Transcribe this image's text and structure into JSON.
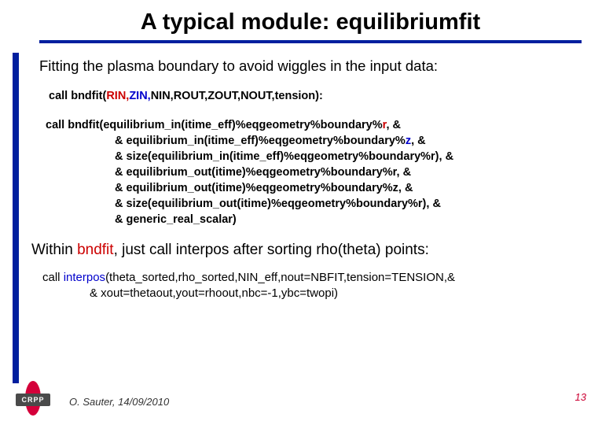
{
  "title": "A typical module: equilibriumfit",
  "intro": "Fitting the plasma boundary to avoid wiggles in the input data:",
  "call1": {
    "prefix": "call ",
    "fn_open": "bndfit(",
    "rin": "RIN,",
    "zin": "ZIN,",
    "rest": "NIN,ROUT,ZOUT,NOUT,tension):"
  },
  "call2": {
    "line0a": "call ",
    "line0b": "bndfit",
    "line0c": "(equilibrium_in(itime_eff)%eqgeometry%boundary%",
    "line0d": "r",
    "line0e": ", &",
    "line1a": "& equilibrium_in(itime_eff)%eqgeometry%boundary%",
    "line1b": "z",
    "line1c": ", &",
    "line2": "& size(equilibrium_in(itime_eff)%eqgeometry%boundary%r), &",
    "line3": "& equilibrium_out(itime)%eqgeometry%boundary%r, &",
    "line4": "& equilibrium_out(itime)%eqgeometry%boundary%z, &",
    "line5": "& size(equilibrium_out(itime)%eqgeometry%boundary%r), &",
    "line6": "& generic_real_scalar)"
  },
  "within": {
    "a": "Within ",
    "b": "bndfit",
    "c": ", just call interpos after sorting rho(theta) points:"
  },
  "call3": {
    "line0a": "call ",
    "line0b": "interpos",
    "line0c": "(theta_sorted,rho_sorted,NIN_eff,nout=NBFIT,tension=TENSION,&",
    "line1": "& xout=thetaout,yout=rhoout,nbc=-1,ybc=twopi)"
  },
  "footer": {
    "logo": "CRPP",
    "author": "O. Sauter, 14/09/2010",
    "page": "13"
  },
  "colors": {
    "accent_blue": "#001f9f",
    "red": "#cc0000",
    "link_blue": "#0000cc",
    "logo_red": "#d4003a",
    "page_red": "#cc0033"
  }
}
